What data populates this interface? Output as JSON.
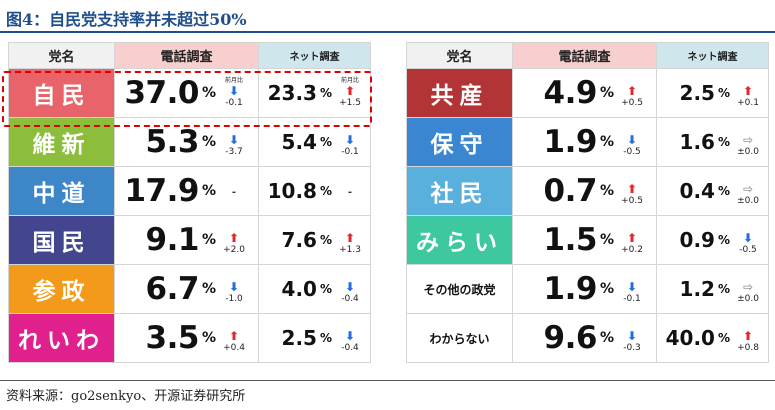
{
  "figure_title": "图4：自民党支持率并未超过50%",
  "source": "资料来源：go2senkyo、开源证券研究所",
  "headers": {
    "party": "党名",
    "phone": "電話調査",
    "net": "ネット調査"
  },
  "change_label": "前月比",
  "unit": "%",
  "colors": {
    "自民": "#e9636a",
    "維新": "#8cbe3c",
    "中道": "#3d86c7",
    "国民": "#43468f",
    "参政": "#f39a1b",
    "れいわ": "#e0208c",
    "共産": "#b23436",
    "保守": "#3a86d1",
    "社民": "#5ab0dc",
    "みらい": "#3ec8a0",
    "その他の政党": "#ffffff",
    "わからない": "#ffffff"
  },
  "chart_data": {
    "type": "table",
    "columns": [
      "党名",
      "電話調査",
      "ネット調査"
    ],
    "rows": [
      {
        "party": "自民",
        "phone": "37.0",
        "phone_dir": "down",
        "phone_chg": "-0.1",
        "net": "23.3",
        "net_dir": "up",
        "net_chg": "+1.5"
      },
      {
        "party": "維新",
        "phone": "5.3",
        "phone_dir": "down",
        "phone_chg": "-3.7",
        "net": "5.4",
        "net_dir": "down",
        "net_chg": "-0.1"
      },
      {
        "party": "中道",
        "phone": "17.9",
        "phone_dir": "none",
        "phone_chg": "",
        "net": "10.8",
        "net_dir": "none",
        "net_chg": ""
      },
      {
        "party": "国民",
        "phone": "9.1",
        "phone_dir": "up",
        "phone_chg": "+2.0",
        "net": "7.6",
        "net_dir": "up",
        "net_chg": "+1.3"
      },
      {
        "party": "参政",
        "phone": "6.7",
        "phone_dir": "down",
        "phone_chg": "-1.0",
        "net": "4.0",
        "net_dir": "down",
        "net_chg": "-0.4"
      },
      {
        "party": "れいわ",
        "phone": "3.5",
        "phone_dir": "up",
        "phone_chg": "+0.4",
        "net": "2.5",
        "net_dir": "down",
        "net_chg": "-0.4"
      },
      {
        "party": "共産",
        "phone": "4.9",
        "phone_dir": "up",
        "phone_chg": "+0.5",
        "net": "2.5",
        "net_dir": "up",
        "net_chg": "+0.1"
      },
      {
        "party": "保守",
        "phone": "1.9",
        "phone_dir": "down",
        "phone_chg": "-0.5",
        "net": "1.6",
        "net_dir": "flat",
        "net_chg": "±0.0"
      },
      {
        "party": "社民",
        "phone": "0.7",
        "phone_dir": "up",
        "phone_chg": "+0.5",
        "net": "0.4",
        "net_dir": "flat",
        "net_chg": "±0.0"
      },
      {
        "party": "みらい",
        "phone": "1.5",
        "phone_dir": "up",
        "phone_chg": "+0.2",
        "net": "0.9",
        "net_dir": "down",
        "net_chg": "-0.5"
      },
      {
        "party": "その他の政党",
        "phone": "1.9",
        "phone_dir": "down",
        "phone_chg": "-0.1",
        "net": "1.2",
        "net_dir": "flat",
        "net_chg": "±0.0"
      },
      {
        "party": "わからない",
        "phone": "9.6",
        "phone_dir": "down",
        "phone_chg": "-0.3",
        "net": "40.0",
        "net_dir": "up",
        "net_chg": "+0.8"
      }
    ]
  }
}
